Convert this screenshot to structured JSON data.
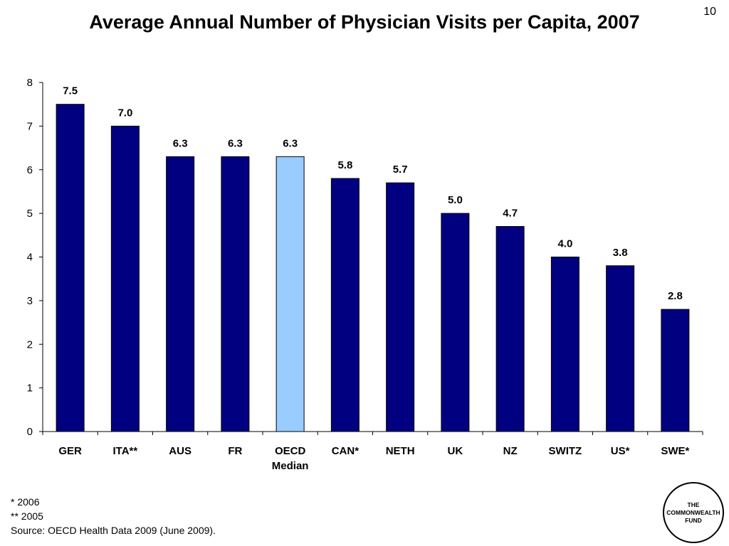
{
  "slide": {
    "number": "10"
  },
  "footnotes": {
    "note_2006": "* 2006",
    "note_2005": "** 2005",
    "source": "Source: OECD Health Data 2009 (June 2009)."
  },
  "logo": {
    "line1": "THE",
    "line2": "COMMONWEALTH",
    "line3": "FUND"
  },
  "colors": {
    "bar_default": "#000080",
    "bar_highlight": "#99ccff",
    "bar_stroke": "#000000"
  },
  "chart_data": {
    "type": "bar",
    "title": "Average Annual Number of Physician Visits per Capita, 2007",
    "xlabel": "",
    "ylabel": "",
    "ylim": [
      0,
      8
    ],
    "yticks": [
      "0",
      "1",
      "2",
      "3",
      "4",
      "5",
      "6",
      "7",
      "8"
    ],
    "grid": false,
    "legend": "none",
    "categories": [
      [
        "GER"
      ],
      [
        "ITA**"
      ],
      [
        "AUS"
      ],
      [
        "FR"
      ],
      [
        "OECD",
        "Median"
      ],
      [
        "CAN*"
      ],
      [
        "NETH"
      ],
      [
        "UK"
      ],
      [
        "NZ"
      ],
      [
        "SWITZ"
      ],
      [
        "US*"
      ],
      [
        "SWE*"
      ]
    ],
    "values": [
      7.5,
      7.0,
      6.3,
      6.3,
      6.3,
      5.8,
      5.7,
      5.0,
      4.7,
      4.0,
      3.8,
      2.8
    ],
    "data_labels": [
      "7.5",
      "7.0",
      "6.3",
      "6.3",
      "6.3",
      "5.8",
      "5.7",
      "5.0",
      "4.7",
      "4.0",
      "3.8",
      "2.8"
    ],
    "highlight_index": 4
  }
}
